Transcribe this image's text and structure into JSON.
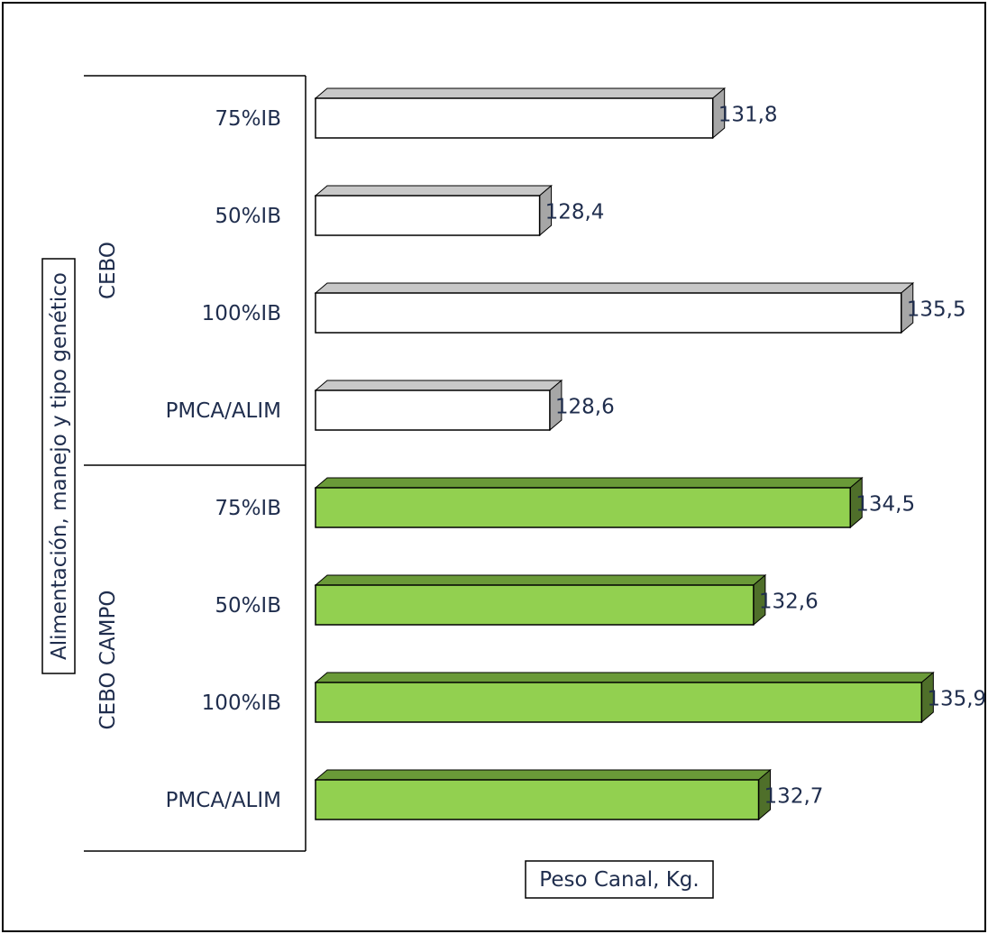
{
  "chart_data": {
    "type": "bar",
    "orientation": "horizontal",
    "xlabel": "Peso Canal, Kg.",
    "ylabel": "Alimentación, manejo y tipo genético",
    "groups": [
      {
        "name": "CEBO",
        "color_front": "#ffffff",
        "color_side": "#a6a6a6",
        "color_top": "#c8c8c8",
        "categories": [
          "75%IB",
          "50%IB",
          "100%IB",
          "PMCA/ALIM"
        ],
        "values": [
          131.8,
          128.4,
          135.5,
          128.6
        ],
        "labels": [
          "131,8",
          "128,4",
          "135,5",
          "128,6"
        ]
      },
      {
        "name": "CEBO CAMPO",
        "color_front": "#92d050",
        "color_side": "#4f6f2a",
        "color_top": "#6a9a38",
        "categories": [
          "75%IB",
          "50%IB",
          "100%IB",
          "PMCA/ALIM"
        ],
        "values": [
          134.5,
          132.6,
          135.9,
          132.7
        ],
        "labels": [
          "134,5",
          "132,6",
          "135,9",
          "132,7"
        ]
      }
    ],
    "xlim": [
      124.0,
      136.0
    ],
    "grid": false,
    "legend": "none"
  }
}
